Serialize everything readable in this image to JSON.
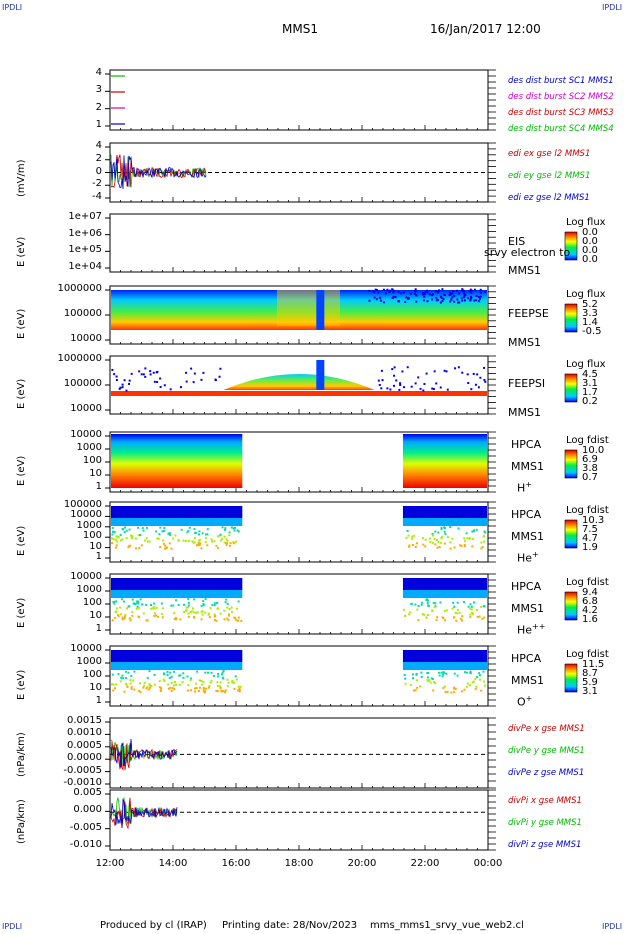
{
  "header": {
    "corner_tl": "IPDLI",
    "corner_tr": "IPDLI",
    "corner_bl": "IPDLI",
    "corner_br": "IPDLI",
    "spacecraft": "MMS1",
    "datetime": "16/Jan/2017 12:00"
  },
  "footer": {
    "produced_by": "Produced by cl (IRAP)",
    "printing_date": "Printing date: 28/Nov/2023",
    "filename": "mms_mms1_srvy_vue_web2.cl"
  },
  "colors": {
    "blue": "#0000cc",
    "magenta": "#cc00cc",
    "red": "#cc0000",
    "green": "#00bb00"
  },
  "chart_data": {
    "type": "line",
    "x_ticks": [
      "12:00",
      "14:00",
      "16:00",
      "18:00",
      "20:00",
      "22:00",
      "00:00"
    ],
    "panels": [
      {
        "id": "des-dist",
        "ylabel": "",
        "ticks": [
          "4",
          "3",
          "2",
          "1"
        ],
        "legend": [
          {
            "name": "des dist burst SC1 MMS1",
            "color": "#0000cc"
          },
          {
            "name": "des dist burst SC2 MMS2",
            "color": "#cc00cc"
          },
          {
            "name": "des dist burst SC3 MMS3",
            "color": "#cc0000"
          },
          {
            "name": "des dist burst SC4 MMS4",
            "color": "#00bb00"
          }
        ]
      },
      {
        "id": "edi",
        "ylabel": "(mV/m)",
        "ticks": [
          "4",
          "2",
          "0",
          "-2",
          "-4"
        ],
        "legend": [
          {
            "name": "edi ex gse l2 MMS1",
            "color": "#cc0000"
          },
          {
            "name": "edi ey gse l2 MMS1",
            "color": "#00bb00"
          },
          {
            "name": "edi ez gse l2 MMS1",
            "color": "#0000cc"
          }
        ]
      },
      {
        "id": "eis",
        "ylabel": "E (eV)",
        "ticks": [
          "1e+07",
          "1e+06",
          "1e+05",
          "1e+04"
        ],
        "inst": [
          "EIS",
          "MMS1"
        ],
        "extra": "srvy electron to",
        "cbar_title": "Log flux",
        "cbar_vals": [
          "0.0",
          "0.0",
          "0.0",
          "0.0"
        ]
      },
      {
        "id": "feepse",
        "ylabel": "E (eV)",
        "ticks": [
          "1000000",
          "100000",
          "10000"
        ],
        "inst": [
          "FEEPSE",
          "MMS1"
        ],
        "cbar_title": "Log flux",
        "cbar_vals": [
          "5.2",
          "3.3",
          "1.4",
          "-0.5"
        ]
      },
      {
        "id": "feepsi",
        "ylabel": "E (eV)",
        "ticks": [
          "1000000",
          "100000",
          "10000"
        ],
        "inst": [
          "FEEPSI",
          "MMS1"
        ],
        "cbar_title": "Log flux",
        "cbar_vals": [
          "4.5",
          "3.1",
          "1.7",
          "0.2"
        ]
      },
      {
        "id": "hpca-h",
        "ylabel": "E (eV)",
        "ticks": [
          "10000",
          "1000",
          "100",
          "10",
          "1"
        ],
        "inst": [
          "HPCA",
          "MMS1"
        ],
        "species": "H",
        "species_sup": "+",
        "cbar_title": "Log fdist",
        "cbar_vals": [
          "10.0",
          "6.9",
          "3.8",
          "0.7"
        ]
      },
      {
        "id": "hpca-he",
        "ylabel": "E (eV)",
        "ticks": [
          "100000",
          "10000",
          "1000",
          "100",
          "10",
          "1"
        ],
        "inst": [
          "HPCA",
          "MMS1"
        ],
        "species": "He",
        "species_sup": "+",
        "cbar_title": "Log fdist",
        "cbar_vals": [
          "10.3",
          "7.5",
          "4.7",
          "1.9"
        ]
      },
      {
        "id": "hpca-he2",
        "ylabel": "E (eV)",
        "ticks": [
          "10000",
          "1000",
          "100",
          "10",
          "1"
        ],
        "inst": [
          "HPCA",
          "MMS1"
        ],
        "species": "He",
        "species_sup": "++",
        "cbar_title": "Log fdist",
        "cbar_vals": [
          "9.4",
          "6.8",
          "4.2",
          "1.6"
        ]
      },
      {
        "id": "hpca-o",
        "ylabel": "E (eV)",
        "ticks": [
          "10000",
          "1000",
          "100",
          "10",
          "1"
        ],
        "inst": [
          "HPCA",
          "MMS1"
        ],
        "species": "O",
        "species_sup": "+",
        "cbar_title": "Log fdist",
        "cbar_vals": [
          "11.5",
          "8.7",
          "5.9",
          "3.1"
        ]
      },
      {
        "id": "divpe",
        "ylabel": "(nPa/km)",
        "ticks": [
          "0.0015",
          "0.0010",
          "0.0005",
          "0.0000",
          "-0.0005",
          "-0.0010"
        ],
        "legend": [
          {
            "name": "divPe x gse MMS1",
            "color": "#cc0000"
          },
          {
            "name": "divPe y gse MMS1",
            "color": "#00bb00"
          },
          {
            "name": "divPe z gse MMS1",
            "color": "#0000cc"
          }
        ]
      },
      {
        "id": "divpi",
        "ylabel": "(nPa/km)",
        "ticks": [
          "0.005",
          "0.000",
          "-0.005",
          "-0.010"
        ],
        "legend": [
          {
            "name": "divPi x gse MMS1",
            "color": "#cc0000"
          },
          {
            "name": "divPi y gse MMS1",
            "color": "#00bb00"
          },
          {
            "name": "divPi z gse MMS1",
            "color": "#0000cc"
          }
        ]
      }
    ]
  }
}
